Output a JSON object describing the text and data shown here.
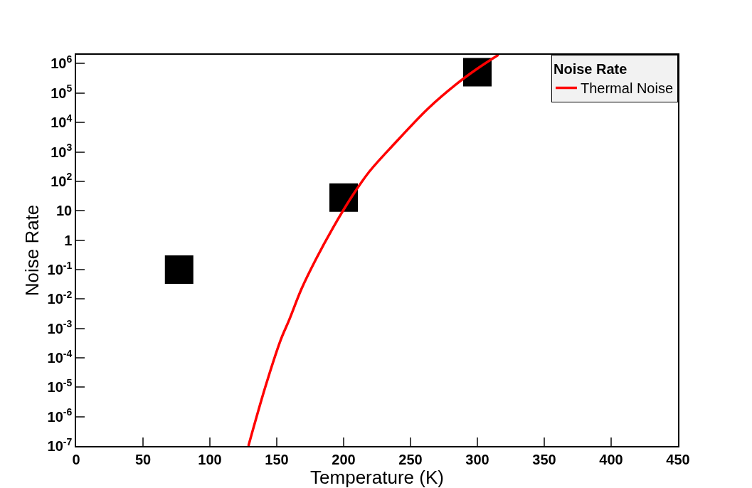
{
  "chart_data": {
    "type": "scatter",
    "xlabel": "Temperature (K)",
    "ylabel": "Noise Rate",
    "legend_title": "Noise Rate",
    "legend": "top right",
    "log": "y",
    "marker": "square",
    "xlim": [
      0,
      450
    ],
    "xticks": [
      0,
      50,
      100,
      150,
      200,
      250,
      300,
      350,
      400,
      450
    ],
    "ylim": [
      1e-07,
      2000000
    ],
    "yticks": [
      {
        "value": 1e-07,
        "label": "10$^{-7}$"
      },
      {
        "value": 1e-06,
        "label": "10$^{-6}$"
      },
      {
        "value": 1e-05,
        "label": "10$^{-5}$"
      },
      {
        "value": 0.0001,
        "label": "10$^{-4}$"
      },
      {
        "value": 0.001,
        "label": "10$^{-3}$"
      },
      {
        "value": 0.01,
        "label": "10$^{-2}$"
      },
      {
        "value": 0.1,
        "label": "10$^{-1}$"
      },
      1,
      10,
      {
        "value": 100,
        "label": "10$^{2}$"
      },
      {
        "value": 1000,
        "label": "10$^{3}$"
      },
      {
        "value": 10000,
        "label": "10$^{4}$"
      },
      {
        "value": 100000,
        "label": "10$^{5}$"
      },
      {
        "value": 1000000,
        "label": "10$^{6}$"
      }
    ],
    "series": [
      {
        "color": "#000000",
        "x": [
          77,
          200,
          300
        ],
        "values": [
          0.1,
          28,
          510000
        ]
      },
      {
        "type": "line",
        "name": "Thermal Noise",
        "color": "#ff0000",
        "line_style": "solid",
        "marker": "none",
        "x": [
          128.8,
          141.4,
          152.9,
          159.2,
          168.7,
          179.2,
          191.8,
          206.5,
          219.1,
          238,
          263.2,
          284.2,
          299,
          315.8
        ],
        "values": [
          1e-07,
          1e-05,
          0.0004,
          0.0019,
          0.023,
          0.22,
          2.5,
          32,
          210,
          1900,
          30000,
          200000,
          630000,
          2000000
        ]
      }
    ]
  }
}
